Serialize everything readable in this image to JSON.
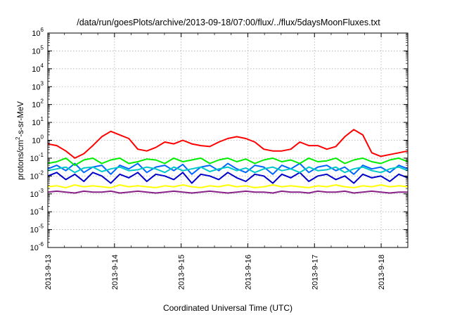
{
  "chart_data": {
    "type": "line",
    "title": "/data/run/goesPlots/archive/2013-09-18/07:00/flux/../flux/5daysMoonFluxes.txt",
    "xlabel": "Coordinated Universal Time (UTC)",
    "ylabel": "protons/cm2-s-sr-MeV",
    "ylabel_parts": {
      "base": "protons/cm",
      "sup": "2",
      "rest": "-s-sr-MeV"
    },
    "y_scale": "log",
    "ylim_exp": [
      -6,
      6
    ],
    "y_tick_base": "10",
    "y_tick_exponents": [
      "6",
      "5",
      "4",
      "3",
      "2",
      "1",
      "0",
      "-1",
      "-2",
      "-3",
      "-4",
      "-5",
      "-6"
    ],
    "x_range_days": [
      0,
      5.4
    ],
    "x_ticks": [
      {
        "day": 0,
        "label": "2013-9-13"
      },
      {
        "day": 1,
        "label": "2013-9-14"
      },
      {
        "day": 2,
        "label": "2013-9-15"
      },
      {
        "day": 3,
        "label": "2013-9-16"
      },
      {
        "day": 4,
        "label": "2013-9-17"
      },
      {
        "day": 5,
        "label": "2013-9-18"
      }
    ],
    "grid": true,
    "series": [
      {
        "color": "#ff0000",
        "log10_values": [
          -0.2,
          -0.3,
          -0.6,
          -1.0,
          -0.75,
          -0.3,
          0.2,
          0.5,
          0.3,
          0.1,
          -0.5,
          -0.6,
          -0.4,
          -0.1,
          -0.2,
          0.0,
          -0.2,
          -0.3,
          -0.35,
          -0.1,
          0.1,
          0.2,
          0.1,
          -0.1,
          -0.5,
          -0.6,
          -0.6,
          -0.5,
          -0.1,
          -0.3,
          -0.3,
          -0.5,
          -0.35,
          0.2,
          0.6,
          0.3,
          -0.7,
          -0.9,
          -0.8,
          -0.7,
          -0.6
        ]
      },
      {
        "color": "#00ee00",
        "log10_values": [
          -1.3,
          -1.2,
          -1.0,
          -1.4,
          -1.1,
          -1.0,
          -1.3,
          -1.1,
          -1.0,
          -1.3,
          -1.2,
          -1.05,
          -1.1,
          -1.3,
          -1.0,
          -1.2,
          -1.1,
          -1.0,
          -1.3,
          -1.1,
          -1.0,
          -1.2,
          -1.05,
          -1.3,
          -1.1,
          -1.0,
          -1.2,
          -1.1,
          -1.3,
          -1.0,
          -1.2,
          -1.15,
          -1.0,
          -1.3,
          -1.1,
          -1.0,
          -1.2,
          -1.3,
          -1.1,
          -1.0,
          -1.2
        ]
      },
      {
        "color": "#00c8c8",
        "log10_values": [
          -1.7,
          -1.6,
          -1.5,
          -1.8,
          -1.55,
          -1.5,
          -1.75,
          -1.6,
          -1.5,
          -1.7,
          -1.65,
          -1.5,
          -1.6,
          -1.8,
          -1.5,
          -1.7,
          -1.6,
          -1.5,
          -1.75,
          -1.6,
          -1.5,
          -1.7,
          -1.55,
          -1.8,
          -1.6,
          -1.5,
          -1.7,
          -1.6,
          -1.8,
          -1.5,
          -1.7,
          -1.65,
          -1.5,
          -1.8,
          -1.6,
          -1.5,
          -1.7,
          -1.8,
          -1.6,
          -1.5,
          -1.7
        ]
      },
      {
        "color": "#0066ff",
        "log10_values": [
          -1.6,
          -1.4,
          -1.7,
          -1.3,
          -1.8,
          -1.5,
          -1.4,
          -1.9,
          -1.4,
          -1.6,
          -1.3,
          -1.8,
          -1.5,
          -1.4,
          -1.7,
          -1.35,
          -1.9,
          -1.5,
          -1.4,
          -1.7,
          -1.3,
          -1.6,
          -1.8,
          -1.4,
          -1.5,
          -1.9,
          -1.4,
          -1.6,
          -1.3,
          -1.8,
          -1.5,
          -1.4,
          -1.7,
          -1.5,
          -1.9,
          -1.4,
          -1.6,
          -1.5,
          -1.8,
          -1.4,
          -1.6
        ]
      },
      {
        "color": "#0000cc",
        "log10_values": [
          -2.0,
          -1.8,
          -2.2,
          -1.9,
          -2.3,
          -1.8,
          -2.0,
          -2.4,
          -1.9,
          -2.1,
          -1.8,
          -2.3,
          -1.9,
          -2.0,
          -2.2,
          -1.8,
          -2.4,
          -1.9,
          -2.0,
          -2.2,
          -1.8,
          -2.1,
          -2.3,
          -1.9,
          -2.0,
          -2.4,
          -1.9,
          -2.1,
          -1.8,
          -2.3,
          -2.0,
          -1.9,
          -2.2,
          -2.0,
          -2.4,
          -1.9,
          -2.1,
          -2.0,
          -2.3,
          -1.9,
          -2.1
        ]
      },
      {
        "color": "#ffff00",
        "log10_values": [
          -2.6,
          -2.55,
          -2.65,
          -2.5,
          -2.6,
          -2.55,
          -2.6,
          -2.65,
          -2.5,
          -2.6,
          -2.55,
          -2.6,
          -2.65,
          -2.55,
          -2.6,
          -2.5,
          -2.6,
          -2.65,
          -2.55,
          -2.6,
          -2.5,
          -2.6,
          -2.55,
          -2.65,
          -2.6,
          -2.5,
          -2.6,
          -2.55,
          -2.6,
          -2.65,
          -2.55,
          -2.6,
          -2.5,
          -2.6,
          -2.65,
          -2.55,
          -2.6,
          -2.5,
          -2.6,
          -2.55,
          -2.6
        ]
      },
      {
        "color": "#882288",
        "log10_values": [
          -2.9,
          -2.85,
          -2.9,
          -2.95,
          -2.85,
          -2.9,
          -2.9,
          -2.85,
          -2.95,
          -2.9,
          -2.85,
          -2.9,
          -2.95,
          -2.9,
          -2.85,
          -2.9,
          -2.95,
          -2.9,
          -2.85,
          -2.9,
          -2.95,
          -2.9,
          -2.85,
          -2.9,
          -2.9,
          -2.95,
          -2.85,
          -2.9,
          -2.9,
          -2.95,
          -2.85,
          -2.9,
          -2.9,
          -2.85,
          -2.95,
          -2.9,
          -2.85,
          -2.9,
          -2.95,
          -2.9,
          -2.9
        ]
      }
    ]
  }
}
